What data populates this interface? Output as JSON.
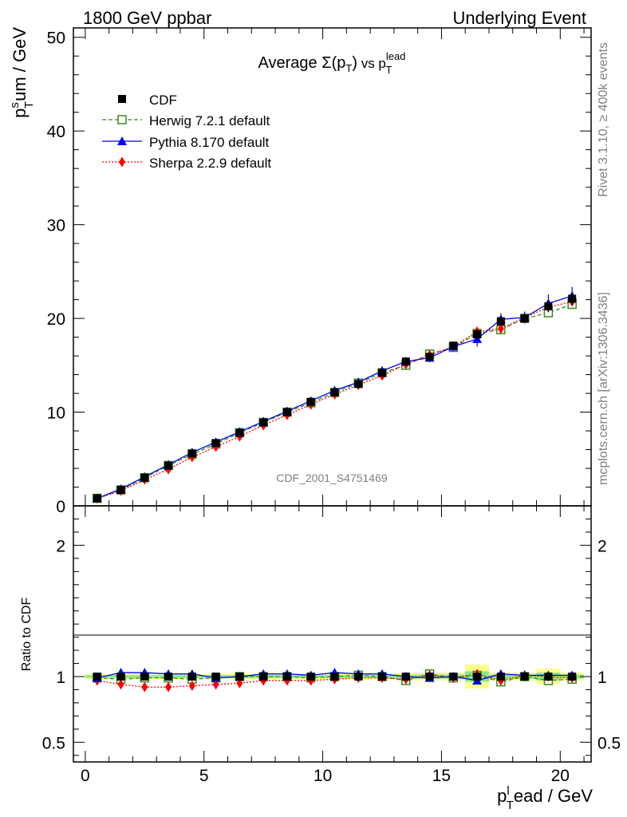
{
  "header": {
    "left": "1800 GeV ppbar",
    "right": "Underlying Event"
  },
  "side_labels": {
    "rivet": "Rivet 3.1.10, ≥ 400k events",
    "mcplots": "mcplots.cern.ch [arXiv:1306.3436]"
  },
  "chart_data": {
    "type": "line",
    "title": "Average Σ(p_T) vs p_T^lead",
    "title_main": "Average ",
    "title_sigma": "Σ(p",
    "title_sigma_sub": "T",
    "title_close": ")",
    "title_vs": " vs p",
    "title_sup": "lead",
    "title_sub2": "T",
    "watermark": "CDF_2001_S4751469",
    "ylabel_main": "p",
    "ylabel_sup": "s",
    "ylabel_sub": "T",
    "ylabel_rest": "um / GeV",
    "xlabel_main": "p",
    "xlabel_sup": "l",
    "xlabel_sub": "T",
    "xlabel_rest": "ead / GeV",
    "ratio_ylabel": "Ratio to CDF",
    "xlim": [
      -0.5,
      21.3
    ],
    "ylim": [
      0,
      51
    ],
    "ratio_ylim": [
      0.35,
      2.3
    ],
    "x_ticks": [
      0,
      5,
      10,
      15,
      20
    ],
    "x_tick_labels": [
      "0",
      "5",
      "10",
      "15",
      "20"
    ],
    "y_ticks": [
      0,
      10,
      20,
      30,
      40,
      50
    ],
    "y_tick_labels": [
      "0",
      "10",
      "20",
      "30",
      "40",
      "50"
    ],
    "ratio_ticks": [
      0.5,
      1,
      2
    ],
    "ratio_tick_labels": [
      "0.5",
      "1",
      "2"
    ],
    "legend_position": "top-left",
    "x": [
      0.5,
      1.5,
      2.5,
      3.5,
      4.5,
      5.5,
      6.5,
      7.5,
      8.5,
      9.5,
      10.5,
      11.5,
      12.5,
      13.5,
      14.5,
      15.5,
      16.5,
      17.5,
      18.5,
      19.5,
      20.5
    ],
    "cdf_uncertainty": [
      0.1,
      0.2,
      0.2,
      0.2,
      0.2,
      0.2,
      0.2,
      0.2,
      0.2,
      0.2,
      0.2,
      0.2,
      0.3,
      0.3,
      0.3,
      0.3,
      0.5,
      0.4,
      0.4,
      0.6,
      0.6
    ],
    "ratio_band_yellow": [
      0.02,
      0.02,
      0.02,
      0.02,
      0.02,
      0.02,
      0.02,
      0.02,
      0.02,
      0.02,
      0.02,
      0.02,
      0.02,
      0.03,
      0.03,
      0.03,
      0.09,
      0.03,
      0.03,
      0.06,
      0.03
    ],
    "ratio_band_green": [
      0.01,
      0.01,
      0.01,
      0.01,
      0.01,
      0.01,
      0.01,
      0.01,
      0.01,
      0.01,
      0.01,
      0.01,
      0.01,
      0.015,
      0.015,
      0.015,
      0.04,
      0.015,
      0.015,
      0.03,
      0.015
    ],
    "series": [
      {
        "name": "CDF",
        "color": "#000000",
        "marker": "square",
        "line": "none",
        "values": [
          0.8,
          1.7,
          3.0,
          4.3,
          5.6,
          6.7,
          7.8,
          8.9,
          10.0,
          11.1,
          12.1,
          13.0,
          14.2,
          15.4,
          15.9,
          17.1,
          18.3,
          19.7,
          20.0,
          21.3,
          22.1
        ],
        "ratio": [
          1,
          1,
          1,
          1,
          1,
          1,
          1,
          1,
          1,
          1,
          1,
          1,
          1,
          1,
          1,
          1,
          1,
          1,
          1,
          1,
          1
        ]
      },
      {
        "name": "Herwig 7.2.1 default",
        "color": "#3a8a1a",
        "marker": "open-square",
        "line": "dashed",
        "values": [
          0.8,
          1.7,
          3.0,
          4.3,
          5.5,
          6.6,
          7.8,
          8.9,
          10.0,
          11.0,
          12.1,
          13.1,
          14.2,
          15.0,
          16.2,
          16.9,
          18.4,
          18.8,
          20.0,
          20.6,
          21.5
        ],
        "ratio": [
          0.99,
          0.98,
          0.99,
          0.99,
          0.98,
          0.99,
          1.0,
          1.0,
          1.0,
          0.99,
          1.0,
          1.01,
          1.0,
          0.97,
          1.02,
          0.99,
          1.01,
          0.96,
          1.0,
          0.97,
          0.98
        ]
      },
      {
        "name": "Pythia 8.170 default",
        "color": "#0000ff",
        "marker": "triangle",
        "line": "solid",
        "values": [
          0.8,
          1.8,
          3.1,
          4.4,
          5.7,
          6.8,
          7.9,
          9.0,
          10.1,
          11.2,
          12.3,
          13.2,
          14.4,
          15.4,
          15.8,
          17.0,
          17.8,
          19.9,
          20.1,
          21.6,
          22.4
        ],
        "ratio": [
          0.99,
          1.03,
          1.03,
          1.02,
          1.02,
          0.99,
          1.0,
          1.02,
          1.02,
          1.01,
          1.03,
          1.02,
          1.02,
          1.0,
          0.99,
          1.0,
          0.97,
          1.02,
          1.01,
          1.01,
          1.01
        ]
      },
      {
        "name": "Sherpa 2.2.9 default",
        "color": "#ff0000",
        "marker": "diamond",
        "line": "dotted",
        "values": [
          0.8,
          1.6,
          2.8,
          3.9,
          5.2,
          6.3,
          7.4,
          8.6,
          9.7,
          10.8,
          11.9,
          12.9,
          13.9,
          15.1,
          16.1,
          17.0,
          18.6,
          18.9,
          20.1,
          21.2,
          21.8
        ],
        "ratio": [
          0.97,
          0.94,
          0.92,
          0.92,
          0.93,
          0.94,
          0.95,
          0.97,
          0.97,
          0.97,
          0.98,
          0.99,
          0.99,
          0.98,
          1.01,
          0.99,
          1.02,
          0.97,
          1.01,
          1.0,
          0.99
        ]
      }
    ]
  }
}
